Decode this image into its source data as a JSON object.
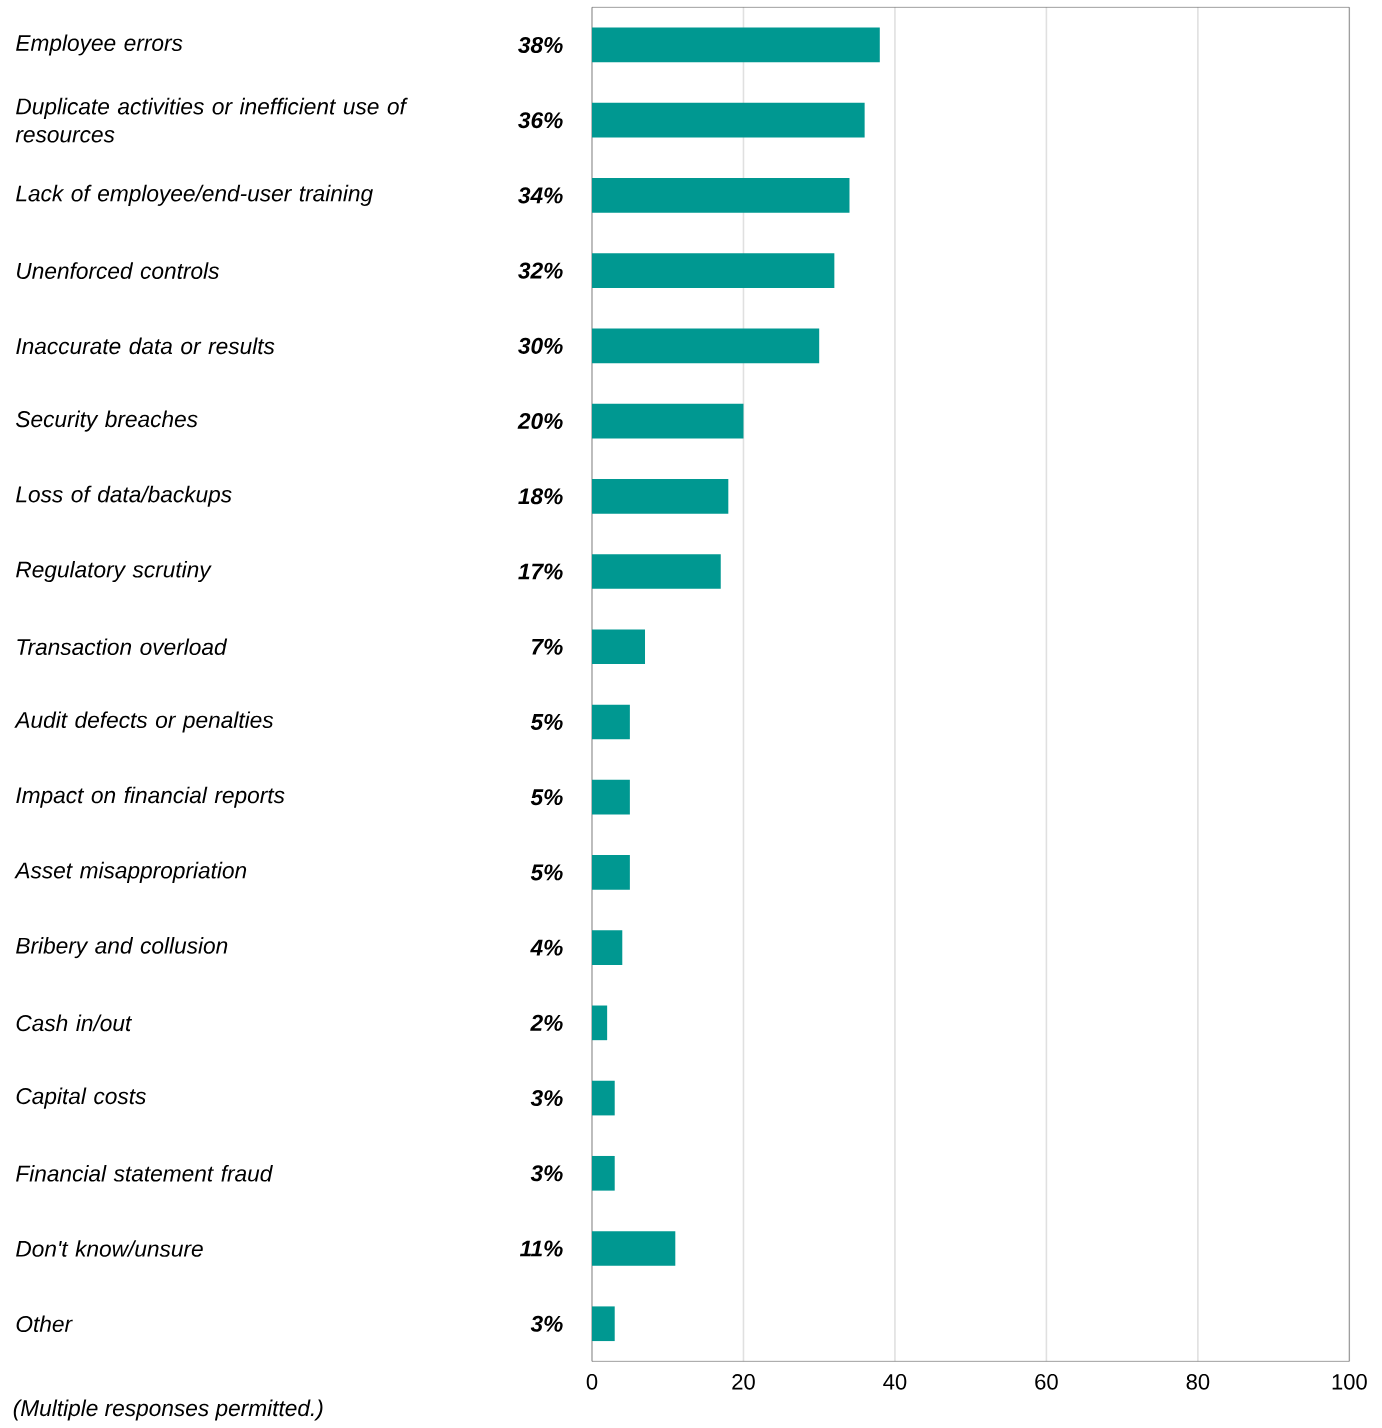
{
  "chart_data": {
    "type": "bar",
    "orientation": "horizontal",
    "categories": [
      "Employee errors",
      "Duplicate activities or inefficient use of resources",
      "Lack of employee/end-user training",
      "Unenforced controls",
      "Inaccurate data or results",
      "Security breaches",
      "Loss of data/backups",
      "Regulatory scrutiny",
      "Transaction overload",
      "Audit defects or penalties",
      "Impact on financial reports",
      "Asset misappropriation",
      "Bribery and collusion",
      "Cash in/out",
      "Capital costs",
      "Financial statement fraud",
      "Don't know/unsure",
      "Other"
    ],
    "values": [
      38,
      36,
      34,
      32,
      30,
      20,
      18,
      17,
      7,
      5,
      5,
      5,
      4,
      2,
      3,
      3,
      11,
      3
    ],
    "value_labels": [
      "38%",
      "36%",
      "34%",
      "32%",
      "30%",
      "20%",
      "18%",
      "17%",
      "7%",
      "5%",
      "5%",
      "5%",
      "4%",
      "2%",
      "3%",
      "3%",
      "11%",
      "3%"
    ],
    "color": "#009891",
    "xlim": [
      0,
      100
    ],
    "xticks": [
      0,
      20,
      40,
      60,
      80,
      100
    ],
    "grid": "x",
    "annotations": [
      "(Multiple responses permitted.)"
    ]
  }
}
